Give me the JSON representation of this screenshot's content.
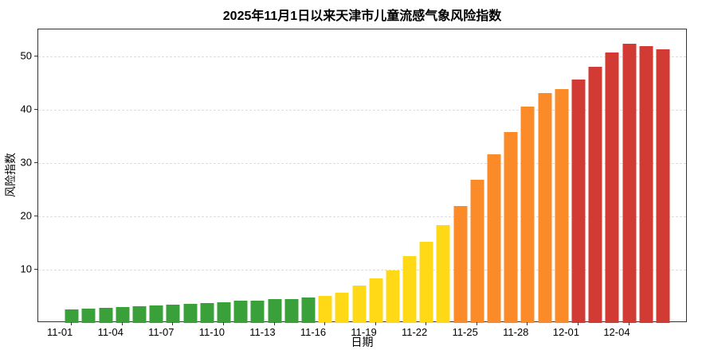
{
  "chart_data": {
    "type": "bar",
    "title": "2025年11月1日以来天津市儿童流感气象风险指数",
    "xlabel": "日期",
    "ylabel": "风险指数",
    "ylim": [
      0,
      55
    ],
    "yticks": [
      10,
      20,
      30,
      40,
      50
    ],
    "grid": "horizontal-dashed",
    "legend": "none",
    "categories": [
      "11-01",
      "11-02",
      "11-03",
      "11-04",
      "11-05",
      "11-06",
      "11-07",
      "11-08",
      "11-09",
      "11-10",
      "11-11",
      "11-12",
      "11-13",
      "11-14",
      "11-15",
      "11-16",
      "11-17",
      "11-18",
      "11-19",
      "11-20",
      "11-21",
      "11-22",
      "11-23",
      "11-24",
      "11-25",
      "11-26",
      "11-27",
      "11-28",
      "11-29",
      "11-30",
      "12-01",
      "12-02",
      "12-03",
      "12-04",
      "12-05",
      "12-06"
    ],
    "values": [
      2.6,
      2.7,
      2.8,
      3.0,
      3.1,
      3.3,
      3.4,
      3.6,
      3.8,
      3.9,
      4.1,
      4.2,
      4.4,
      4.5,
      4.7,
      5.0,
      5.7,
      7.0,
      8.4,
      9.9,
      12.5,
      15.2,
      18.3,
      21.9,
      26.8,
      31.6,
      35.8,
      40.6,
      43.1,
      43.8,
      45.6,
      48.0,
      50.7,
      52.3,
      51.9,
      51.3
    ],
    "point_color_groups": [
      "green",
      "green",
      "green",
      "green",
      "green",
      "green",
      "green",
      "green",
      "green",
      "green",
      "green",
      "green",
      "green",
      "green",
      "green",
      "yellow",
      "yellow",
      "yellow",
      "yellow",
      "yellow",
      "yellow",
      "yellow",
      "yellow",
      "orange",
      "orange",
      "orange",
      "orange",
      "orange",
      "orange",
      "orange",
      "red",
      "red",
      "red",
      "red",
      "red",
      "red"
    ],
    "palette": {
      "green": "#3aa13a",
      "yellow": "#ffd916",
      "orange": "#fb8b28",
      "red": "#d23a34"
    },
    "xtick_labels": [
      "11-01",
      "11-04",
      "11-07",
      "11-10",
      "11-13",
      "11-16",
      "11-19",
      "11-22",
      "11-25",
      "11-28",
      "12-01",
      "12-04"
    ]
  }
}
